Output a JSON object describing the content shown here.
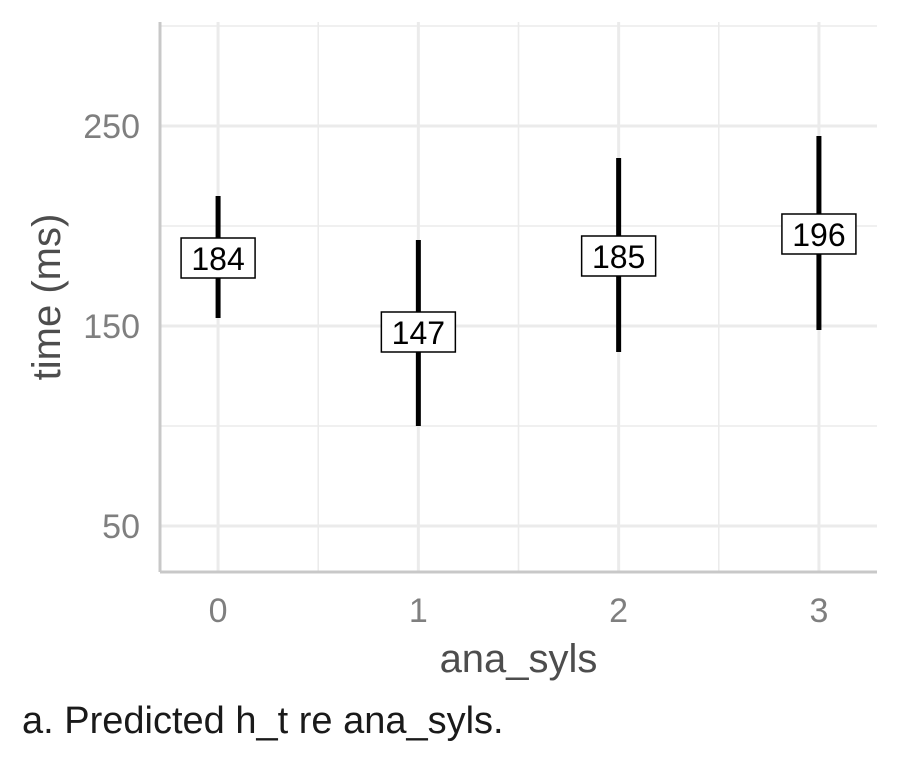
{
  "caption": "a. Predicted h_t re ana_syls.",
  "chart_data": {
    "type": "errorbar",
    "xlabel": "ana_syls",
    "ylabel": "time (ms)",
    "x": [
      0,
      1,
      2,
      3
    ],
    "xticks": [
      "0",
      "1",
      "2",
      "3"
    ],
    "yticks": [
      50,
      150,
      250
    ],
    "ylim": [
      27,
      302
    ],
    "xlim": [
      -0.29,
      3.29
    ],
    "grid": true,
    "points": [
      {
        "x": 0,
        "estimate": 184,
        "lower": 154,
        "upper": 215,
        "label": "184"
      },
      {
        "x": 1,
        "estimate": 147,
        "lower": 100,
        "upper": 193,
        "label": "147"
      },
      {
        "x": 2,
        "estimate": 185,
        "lower": 137,
        "upper": 234,
        "label": "185"
      },
      {
        "x": 3,
        "estimate": 196,
        "lower": 148,
        "upper": 245,
        "label": "196"
      }
    ],
    "colors": {
      "grid": "#ebebeb",
      "axis": "#c8c8c8",
      "bar": "#000000"
    }
  }
}
